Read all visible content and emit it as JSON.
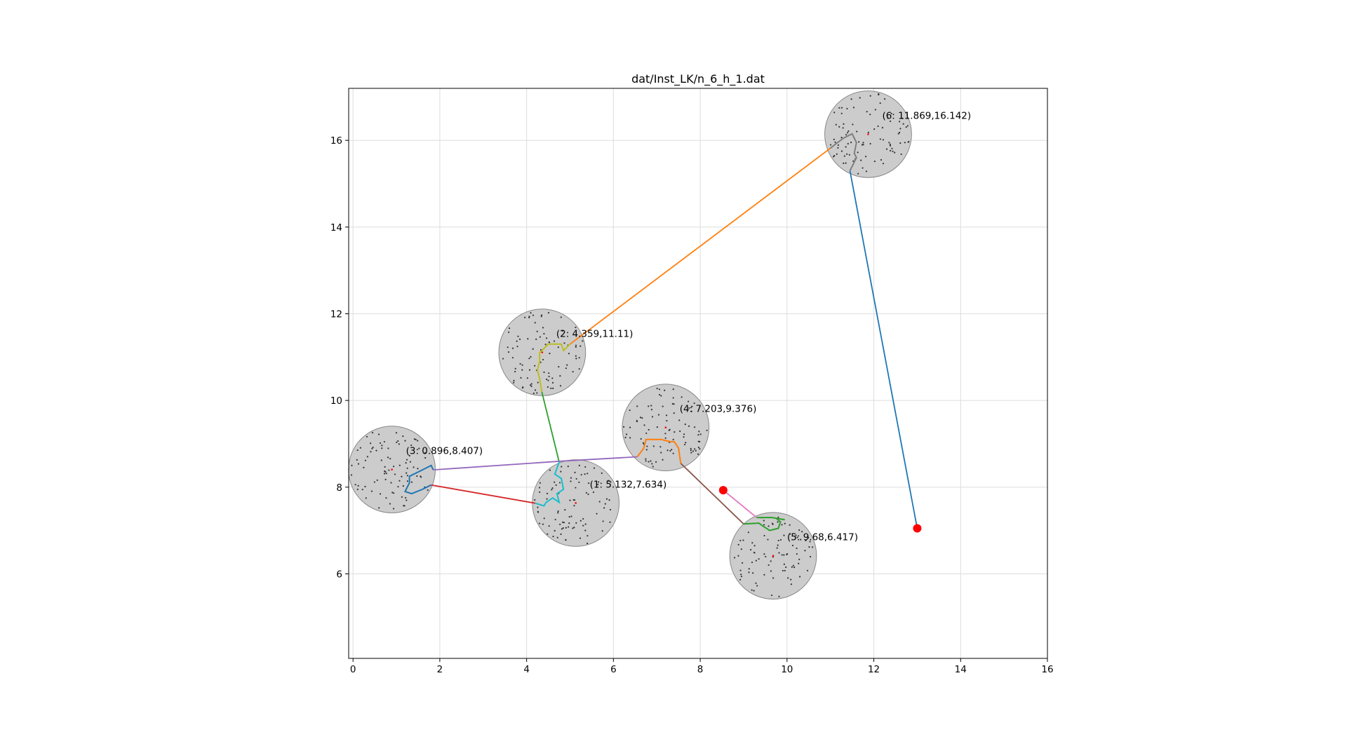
{
  "chart_data": {
    "type": "scatter",
    "title": "dat/Inst_LK/n_6_h_1.dat",
    "xlabel": "",
    "ylabel": "",
    "xlim": [
      -0.1,
      16.0
    ],
    "ylim": [
      4.05,
      17.2
    ],
    "xticks": [
      0,
      2,
      4,
      6,
      8,
      10,
      12,
      14,
      16
    ],
    "yticks": [
      6,
      8,
      10,
      12,
      14,
      16
    ],
    "grid": true,
    "colors": {
      "disk_fill": "#cccccc",
      "disk_edge": "#888888",
      "point": "#333333",
      "center": "#ff0000",
      "depot": "#ff0000",
      "grid": "#dddddd"
    },
    "disks": [
      {
        "id": 1,
        "cx": 5.132,
        "cy": 7.634,
        "r": 1.0,
        "label": "(1: 5.132,7.634)"
      },
      {
        "id": 2,
        "cx": 4.359,
        "cy": 11.11,
        "r": 1.0,
        "label": "(2: 4.359,11.11)"
      },
      {
        "id": 3,
        "cx": 0.896,
        "cy": 8.407,
        "r": 1.0,
        "label": "(3: 0.896,8.407)"
      },
      {
        "id": 4,
        "cx": 7.203,
        "cy": 9.376,
        "r": 1.0,
        "label": "(4: 7.203,9.376)"
      },
      {
        "id": 5,
        "cx": 9.68,
        "cy": 6.417,
        "r": 1.0,
        "label": "(5: 9.68,6.417)"
      },
      {
        "id": 6,
        "cx": 11.869,
        "cy": 16.142,
        "r": 1.0,
        "label": "(6: 11.869,16.142)"
      }
    ],
    "depots": [
      {
        "x": 8.53,
        "y": 7.93
      },
      {
        "x": 13.0,
        "y": 7.05
      }
    ],
    "connections": [
      {
        "color": "#1f77b4",
        "points": [
          [
            13.0,
            7.05
          ],
          [
            11.45,
            15.3
          ]
        ]
      },
      {
        "color": "#ff7f0e",
        "points": [
          [
            11.0,
            15.82
          ],
          [
            5.0,
            11.3
          ]
        ]
      },
      {
        "color": "#2ca02c",
        "points": [
          [
            4.35,
            10.2
          ],
          [
            4.75,
            8.58
          ]
        ]
      },
      {
        "color": "#9467bd",
        "points": [
          [
            1.85,
            8.4
          ],
          [
            4.8,
            8.6
          ],
          [
            6.55,
            8.7
          ]
        ]
      },
      {
        "color": "#d62728",
        "points": [
          [
            1.8,
            8.05
          ],
          [
            4.2,
            7.63
          ]
        ]
      },
      {
        "color": "#8c564b",
        "points": [
          [
            7.55,
            8.55
          ],
          [
            9.0,
            7.15
          ]
        ]
      },
      {
        "color": "#e377c2",
        "points": [
          [
            8.53,
            7.93
          ],
          [
            9.3,
            7.3
          ]
        ]
      }
    ],
    "inner_paths": [
      {
        "color": "#bcbd22",
        "points": [
          [
            5.0,
            11.3
          ],
          [
            4.85,
            11.15
          ],
          [
            4.8,
            11.3
          ],
          [
            4.5,
            11.3
          ],
          [
            4.4,
            11.2
          ],
          [
            4.3,
            11.1
          ],
          [
            4.3,
            10.9
          ],
          [
            4.25,
            10.7
          ],
          [
            4.3,
            10.5
          ],
          [
            4.35,
            10.2
          ]
        ]
      },
      {
        "color": "#17becf",
        "points": [
          [
            4.75,
            8.58
          ],
          [
            4.65,
            8.3
          ],
          [
            4.8,
            8.2
          ],
          [
            4.85,
            7.95
          ],
          [
            4.7,
            7.85
          ],
          [
            4.75,
            7.65
          ],
          [
            4.6,
            7.75
          ],
          [
            4.45,
            7.65
          ],
          [
            4.4,
            7.57
          ],
          [
            4.2,
            7.63
          ]
        ]
      },
      {
        "color": "#1f77b4",
        "points": [
          [
            1.85,
            8.4
          ],
          [
            1.8,
            8.5
          ],
          [
            1.6,
            8.4
          ],
          [
            1.3,
            8.25
          ],
          [
            1.3,
            8.1
          ],
          [
            1.2,
            7.9
          ],
          [
            1.35,
            7.85
          ],
          [
            1.6,
            7.95
          ],
          [
            1.8,
            8.05
          ]
        ]
      },
      {
        "color": "#ff7f0e",
        "points": [
          [
            6.55,
            8.7
          ],
          [
            6.7,
            8.9
          ],
          [
            6.75,
            9.1
          ],
          [
            7.1,
            9.1
          ],
          [
            7.3,
            9.05
          ],
          [
            7.4,
            9.05
          ],
          [
            7.5,
            8.9
          ],
          [
            7.55,
            8.55
          ]
        ]
      },
      {
        "color": "#2ca02c",
        "points": [
          [
            9.0,
            7.15
          ],
          [
            9.35,
            7.17
          ],
          [
            9.45,
            7.1
          ],
          [
            9.6,
            7.0
          ],
          [
            9.8,
            7.05
          ],
          [
            9.85,
            7.2
          ],
          [
            9.75,
            7.28
          ],
          [
            9.95,
            7.25
          ],
          [
            9.65,
            7.3
          ],
          [
            9.3,
            7.3
          ]
        ]
      },
      {
        "color": "#7f7f7f",
        "points": [
          [
            11.0,
            15.82
          ],
          [
            11.1,
            15.9
          ],
          [
            11.3,
            16.05
          ],
          [
            11.5,
            16.15
          ],
          [
            11.6,
            15.95
          ],
          [
            11.55,
            15.7
          ],
          [
            11.6,
            15.6
          ],
          [
            11.45,
            15.3
          ]
        ]
      }
    ]
  }
}
